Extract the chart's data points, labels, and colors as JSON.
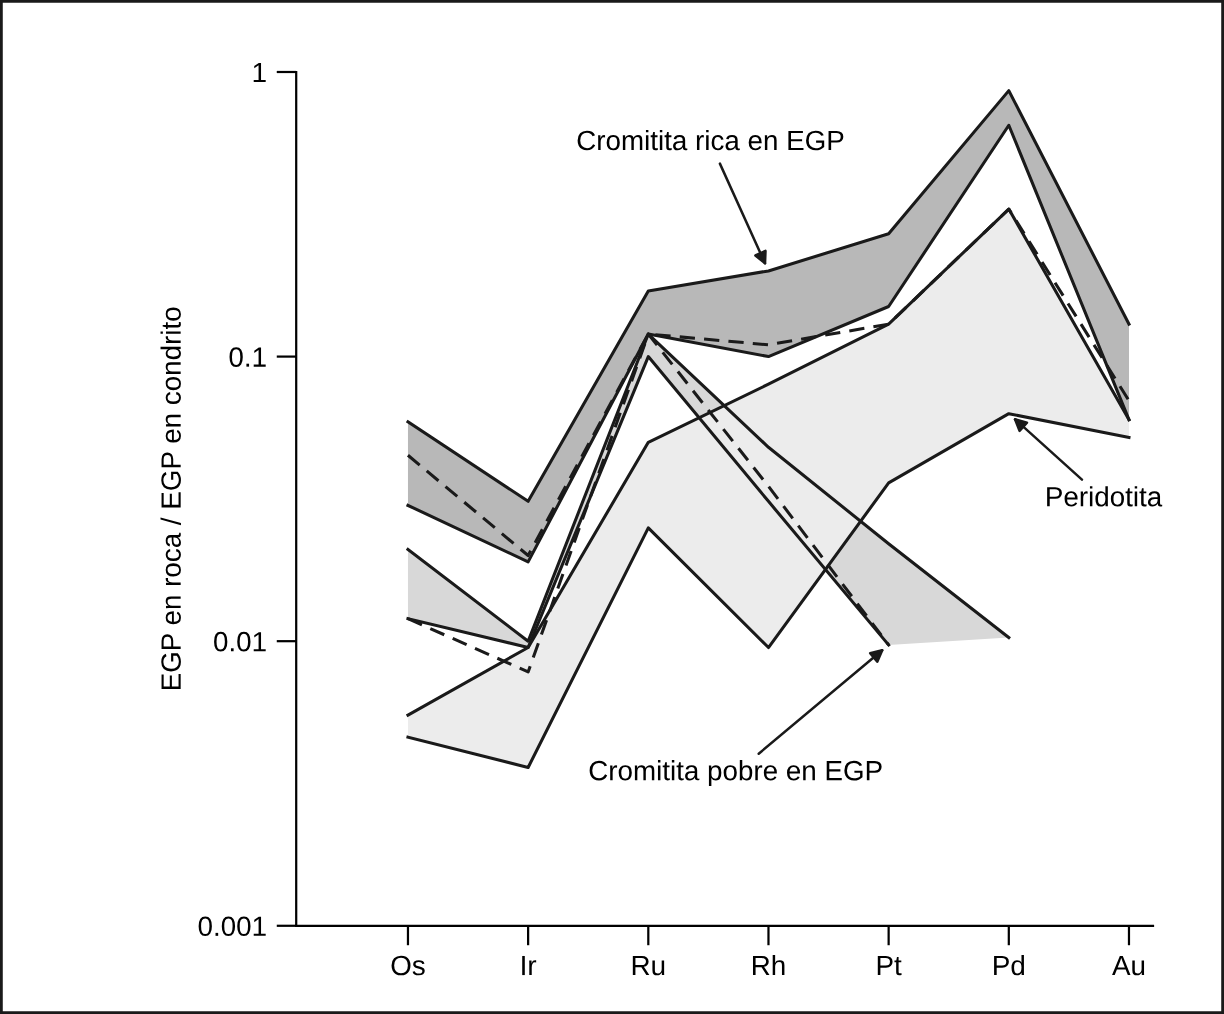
{
  "chart_data": {
    "type": "line",
    "ylabel": "EGP en roca / EGP en condrito",
    "categories": [
      "Os",
      "Ir",
      "Ru",
      "Rh",
      "Pt",
      "Pd",
      "Au"
    ],
    "log": "y",
    "ylim": [
      0.001,
      1
    ],
    "yticks": [
      0.001,
      0.01,
      0.1,
      1
    ],
    "grid": false,
    "legend": false,
    "marker": "none",
    "series": [
      {
        "type": "area",
        "color": "#b8b8b8",
        "values": [
          null,
          null,
          null,
          null,
          null,
          null,
          null
        ],
        "lower": [
          0.03,
          0.019,
          0.12,
          0.1,
          0.15,
          0.65,
          0.06
        ],
        "upper": [
          0.059,
          0.031,
          0.17,
          0.2,
          0.27,
          0.86,
          0.13
        ]
      },
      {
        "type": "area",
        "color": "#d8d8d8",
        "values": [
          null,
          null,
          null,
          null,
          null,
          null,
          null
        ],
        "lower": [
          0.012,
          0.0095,
          0.1,
          0.031,
          0.0097,
          0.0103,
          null
        ],
        "upper": [
          0.021,
          0.01,
          0.12,
          0.048,
          0.022,
          0.0103,
          null
        ]
      },
      {
        "type": "area",
        "color": "#ececec",
        "values": [
          null,
          null,
          null,
          null,
          null,
          null,
          null
        ],
        "lower": [
          0.0046,
          0.0036,
          0.025,
          0.0095,
          0.036,
          0.063,
          0.052
        ],
        "upper": [
          0.0055,
          0.0095,
          0.05,
          0.08,
          0.13,
          0.33,
          0.06
        ]
      },
      {
        "color": "#1a1a1a",
        "values": [
          0.059,
          0.031,
          0.17,
          0.2,
          0.27,
          0.86,
          0.13
        ]
      },
      {
        "color": "#1a1a1a",
        "values": [
          0.03,
          0.019,
          0.12,
          0.1,
          0.15,
          0.65,
          0.06
        ]
      },
      {
        "color": "#1a1a1a",
        "values": [
          0.021,
          0.01,
          0.12,
          0.048,
          0.022,
          0.0103,
          null
        ]
      },
      {
        "color": "#1a1a1a",
        "values": [
          0.012,
          0.0095,
          0.1,
          0.031,
          0.0097,
          null,
          null
        ]
      },
      {
        "color": "#1a1a1a",
        "values": [
          0.0055,
          0.0095,
          0.05,
          0.08,
          0.13,
          0.33,
          0.06
        ]
      },
      {
        "color": "#1a1a1a",
        "values": [
          0.0046,
          0.0036,
          0.025,
          0.0095,
          0.036,
          0.063,
          0.052
        ]
      },
      {
        "color": "#1a1a1a",
        "line_style": "dashed",
        "values": [
          0.045,
          0.02,
          0.12,
          0.11,
          0.13,
          0.33,
          0.07
        ]
      },
      {
        "color": "#1a1a1a",
        "line_style": "dashed",
        "values": [
          0.012,
          0.0078,
          0.12,
          0.035,
          0.0097,
          null,
          null
        ]
      }
    ],
    "annotations": [
      {
        "text": "Cromitita rica en EGP",
        "x": "Rh",
        "y": 0.2
      },
      {
        "text": "Peridotita",
        "x": "Pd",
        "y": 0.063
      },
      {
        "text": "Cromitita pobre en EGP",
        "x": "Pt",
        "y": 0.0097
      }
    ]
  }
}
